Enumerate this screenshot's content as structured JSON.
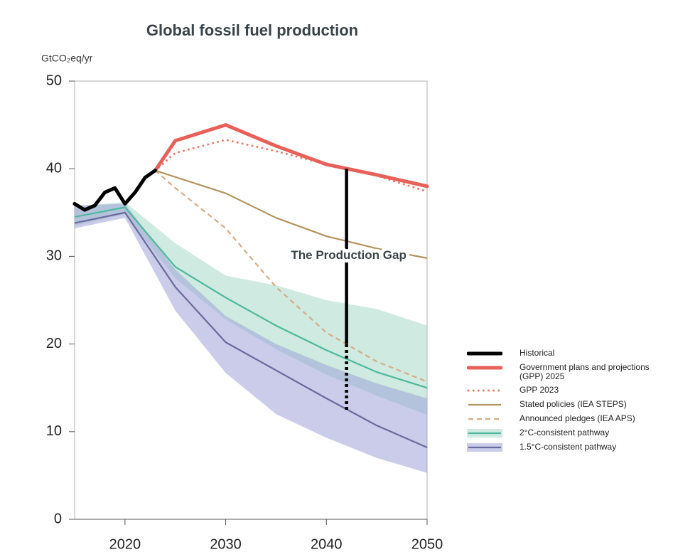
{
  "chart_data": {
    "type": "line",
    "title": "Global fossil fuel production",
    "y_label": "GtCO₂eq/yr",
    "xlim": [
      2015,
      2050
    ],
    "xticks": [
      2020,
      2030,
      2040,
      2050
    ],
    "ylim": [
      0,
      50
    ],
    "yticks": [
      0,
      10,
      20,
      30,
      40,
      50
    ],
    "grid": false,
    "annotation": {
      "label": "The Production Gap",
      "x": 2042,
      "solid": [
        20,
        40
      ],
      "dotted": [
        12.5,
        20
      ]
    },
    "series": [
      {
        "name": "Historical",
        "color": "#000000",
        "style": "solid-bold",
        "x": [
          2015,
          2016,
          2017,
          2018,
          2019,
          2020,
          2021,
          2022,
          2023
        ],
        "values": [
          36.0,
          35.3,
          35.8,
          37.3,
          37.8,
          36.0,
          37.3,
          39.0,
          39.8
        ]
      },
      {
        "name": "Government plans and projections (GPP) 2025",
        "color": "#e8605a",
        "style": "solid-bold",
        "x": [
          2023,
          2025,
          2030,
          2035,
          2040,
          2045,
          2050
        ],
        "values": [
          39.8,
          43.2,
          45.0,
          42.6,
          40.5,
          39.3,
          38.0
        ]
      },
      {
        "name": "GPP 2023",
        "color": "#e8806a",
        "style": "dotted",
        "x": [
          2023,
          2025,
          2030,
          2035,
          2040,
          2045,
          2050
        ],
        "values": [
          39.8,
          41.8,
          43.3,
          42.0,
          40.5,
          39.2,
          37.4
        ]
      },
      {
        "name": "Stated policies (IEA STEPS)",
        "color": "#b39460",
        "style": "solid",
        "x": [
          2023,
          2030,
          2035,
          2040,
          2045,
          2050
        ],
        "values": [
          39.8,
          37.2,
          34.4,
          32.3,
          30.9,
          29.8
        ]
      },
      {
        "name": "Announced pledges (IEA APS)",
        "color": "#d8ab86",
        "style": "dashed",
        "x": [
          2023,
          2025,
          2030,
          2035,
          2040,
          2045,
          2050
        ],
        "values": [
          39.8,
          37.8,
          33.2,
          26.5,
          21.3,
          18.0,
          15.7
        ]
      },
      {
        "name": "2°C-consistent pathway",
        "color": "#4db89e",
        "band_color": "#a8d8c6",
        "style": "solid",
        "x": [
          2015,
          2020,
          2025,
          2030,
          2035,
          2040,
          2045,
          2050
        ],
        "values": [
          34.5,
          35.6,
          28.8,
          25.3,
          22.1,
          19.3,
          16.8,
          15.0
        ],
        "upper": [
          35.7,
          36.2,
          31.5,
          27.8,
          26.7,
          25.0,
          24.0,
          22.1
        ],
        "lower": [
          33.5,
          34.8,
          27.5,
          22.8,
          19.4,
          16.5,
          14.1,
          11.9
        ]
      },
      {
        "name": "1.5°C-consistent pathway",
        "color": "#6a6a9c",
        "band_color": "#9ea2d8",
        "style": "solid",
        "x": [
          2015,
          2020,
          2025,
          2030,
          2035,
          2040,
          2045,
          2050
        ],
        "values": [
          33.8,
          35.0,
          26.5,
          20.2,
          17.0,
          13.8,
          10.7,
          8.2
        ],
        "upper": [
          35.8,
          36.0,
          28.5,
          23.2,
          20.0,
          17.6,
          15.5,
          13.8
        ],
        "lower": [
          33.2,
          34.4,
          23.8,
          16.7,
          12.0,
          9.3,
          7.0,
          5.3
        ]
      }
    ]
  }
}
